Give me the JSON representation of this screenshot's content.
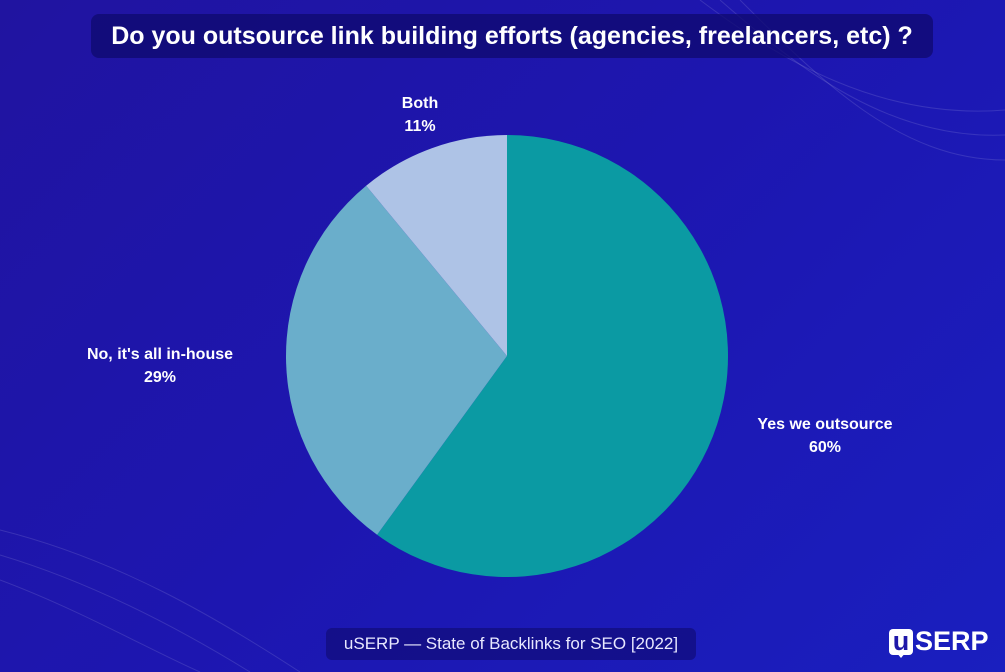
{
  "chart_data": {
    "type": "pie",
    "title": "Do you outsource link building efforts (agencies, freelancers, etc) ?",
    "slices": [
      {
        "label": "Yes we outsource",
        "value": 60,
        "display": "60%",
        "color": "#0b9aa3"
      },
      {
        "label": "No, it's all in-house",
        "value": 29,
        "display": "29%",
        "color": "#6aaecb"
      },
      {
        "label": "Both",
        "value": 11,
        "display": "11%",
        "color": "#aec3e6"
      }
    ]
  },
  "footer": "uSERP — State of Backlinks for SEO [2022]",
  "logo": {
    "mark": "u",
    "text": "SERP"
  }
}
